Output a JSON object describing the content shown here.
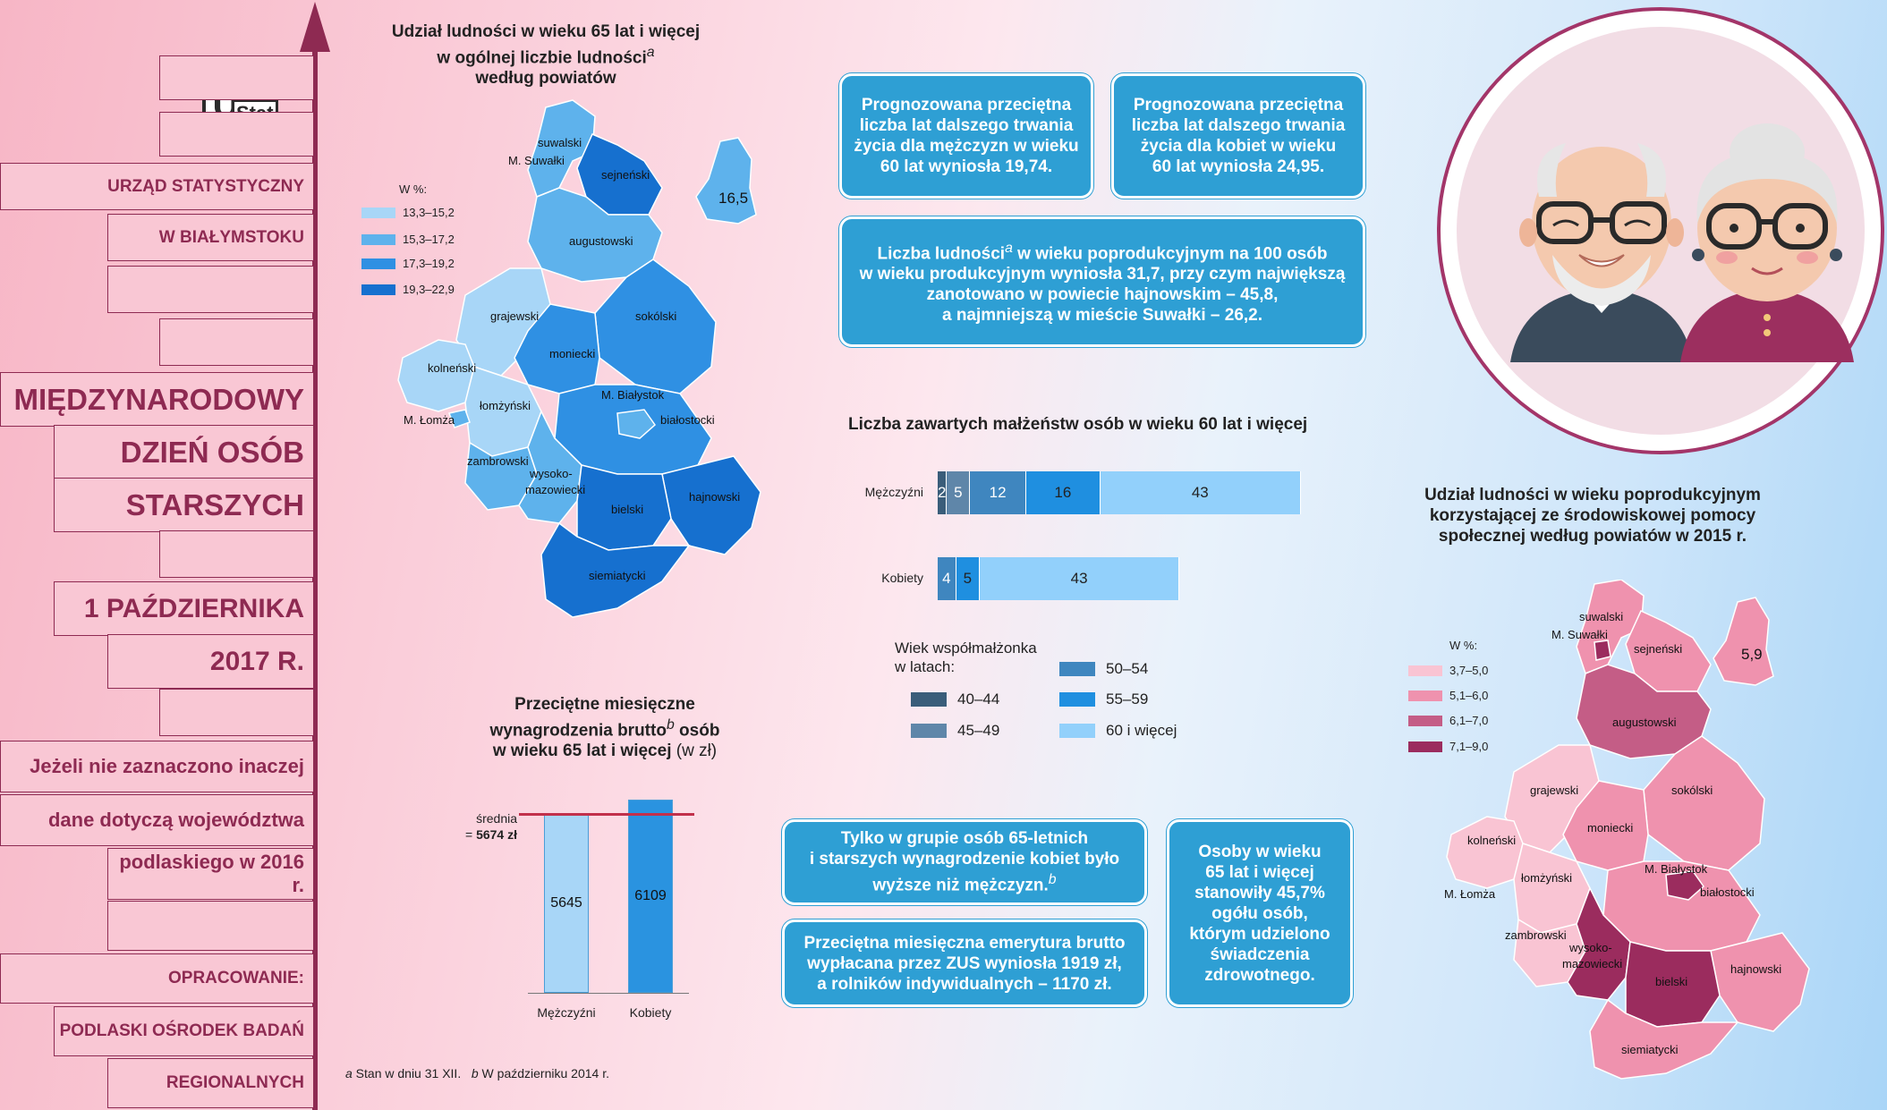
{
  "sidebar": {
    "office_line1": "URZĄD STATYSTYCZNY",
    "office_line2": "W BIAŁYMSTOKU",
    "event_line1": "MIĘDZYNARODOWY",
    "event_line2": "DZIEŃ OSÓB",
    "event_line3": "STARSZYCH",
    "date_line1": "1 PAŹDZIERNIKA",
    "date_line2": "2017 R.",
    "note_line1": "Jeżeli nie zaznaczono inaczej",
    "note_line2": "dane dotyczą województwa",
    "note_line3": "podlaskiego w 2016 r.",
    "author_label": "OPRACOWANIE:",
    "author_line1": "PODLASKI OŚRODEK BADAŃ",
    "author_line2": "REGIONALNYCH",
    "logo_big": "U",
    "logo_small": "Stat"
  },
  "map1": {
    "title_line1": "Udział ludności w wieku 65 lat i więcej",
    "title_line2": "w ogólnej liczbie ludności",
    "title_sup": "a",
    "title_line3": "według powiatów",
    "legend_title": "W %:",
    "legend": [
      {
        "label": "13,3–15,2",
        "color": "#a8d6f7"
      },
      {
        "label": "15,3–17,2",
        "color": "#5eb2ec"
      },
      {
        "label": "17,3–19,2",
        "color": "#2f90e3"
      },
      {
        "label": "19,3–22,9",
        "color": "#1670cf"
      }
    ],
    "inset_value": "16,5",
    "districts": {
      "suwalski": "suwalski",
      "m_suwalki": "M. Suwałki",
      "sejnenski": "sejneński",
      "augustowski": "augustowski",
      "grajewski": "grajewski",
      "sokolski": "sokólski",
      "kolnenski": "kolneński",
      "moniecki": "moniecki",
      "m_bialystok": "M. Białystok",
      "m_lomza": "M. Łomża",
      "lomzynski": "łomżyński",
      "bialostocki": "białostocki",
      "zambrowski": "zambrowski",
      "wysoko1": "wysoko-",
      "wysoko2": "mazowiecki",
      "hajnowski": "hajnowski",
      "bielski": "bielski",
      "siemiatycki": "siemiatycki"
    }
  },
  "map2": {
    "title_line1": "Udział ludności w wieku poprodukcyjnym",
    "title_line2": "korzystającej ze środowiskowej pomocy",
    "title_line3": "społecznej według powiatów w 2015 r.",
    "legend_title": "W %:",
    "legend": [
      {
        "label": "3,7–5,0",
        "color": "#f9c4d3"
      },
      {
        "label": "5,1–6,0",
        "color": "#ef92ae"
      },
      {
        "label": "6,1–7,0",
        "color": "#c45d86"
      },
      {
        "label": "7,1–9,0",
        "color": "#9b2c5e"
      }
    ],
    "inset_value": "5,9"
  },
  "info_boxes": {
    "men_life": [
      "Prognozowana przeciętna",
      "liczba lat dalszego trwania",
      "życia dla mężczyzn w wieku",
      "60 lat wyniosła 19,74."
    ],
    "women_life": [
      "Prognozowana przeciętna",
      "liczba lat dalszego trwania",
      "życia dla kobiet w wieku",
      "60 lat wyniosła 24,95."
    ],
    "dependency_l1a": "Liczba ludności",
    "dependency_sup": "a",
    "dependency_l1b": " w wieku poprodukcyjnym na 100 osób",
    "dependency_l2": "w wieku produkcyjnym wyniosła 31,7, przy czym największą",
    "dependency_l3": "zanotowano w powiecie hajnowskim – 45,8,",
    "dependency_l4": "a najmniejszą w mieście Suwałki – 26,2.",
    "wage_l1": "Tylko w grupie osób 65-letnich",
    "wage_l2": "i starszych wynagrodzenie kobiet było",
    "wage_l3": "wyższe niż mężczyzn.",
    "wage_sup": "b",
    "pension": [
      "Przeciętna miesięczna emerytura brutto",
      "wypłacana przez ZUS wyniosła 1919 zł,",
      "a rolników indywidualnych – 1170 zł."
    ],
    "health": [
      "Osoby w wieku",
      "65 lat i więcej",
      "stanowiły 45,7%",
      "ogółu osób,",
      "którym udzielono",
      "świadczenia",
      "zdrowotnego."
    ]
  },
  "chart_data": [
    {
      "type": "bar",
      "orientation": "horizontal-stacked",
      "title": "Liczba zawartych małżeństw osób w wieku 60 lat i więcej",
      "categories": [
        "Mężczyźni",
        "Kobiety"
      ],
      "legend_title_line1": "Wiek współmałżonka",
      "legend_title_line2": "w latach:",
      "series": [
        {
          "name": "40–44",
          "color": "#3a5d7a",
          "values": [
            2,
            0
          ]
        },
        {
          "name": "45–49",
          "color": "#5f86a9",
          "values": [
            5,
            0
          ]
        },
        {
          "name": "50–54",
          "color": "#3f86bf",
          "values": [
            12,
            4
          ]
        },
        {
          "name": "55–59",
          "color": "#1f8fe0",
          "values": [
            16,
            5
          ]
        },
        {
          "name": "60 i więcej",
          "color": "#92d0fb",
          "values": [
            43,
            43
          ]
        }
      ]
    },
    {
      "type": "bar",
      "title_line1": "Przeciętne miesięczne",
      "title_line2a": "wynagrodzenia brutto",
      "title_sup": "b",
      "title_line2b": " osób",
      "title_line3a": "w wieku 65 lat i więcej",
      "title_line3b": " (w zł)",
      "categories": [
        "Mężczyźni",
        "Kobiety"
      ],
      "values": [
        5645,
        6109
      ],
      "colors": [
        "#a8d6f7",
        "#2a93e0"
      ],
      "average_label_line1": "średnia",
      "average_label_prefix": "= ",
      "average_value": "5674 zł",
      "average": 5674,
      "ylim": [
        0,
        6200
      ]
    }
  ],
  "footnote": {
    "a_mark": "a",
    "a_text": " Stan w dniu 31 XII.",
    "b_mark": "b",
    "b_text": " W październiku 2014 r."
  }
}
